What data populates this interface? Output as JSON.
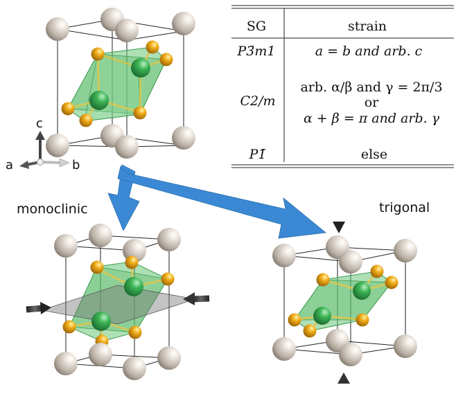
{
  "axes": {
    "a": "a",
    "b": "b",
    "c": "c"
  },
  "labels": {
    "monoclinic": "monoclinic",
    "trigonal": "trigonal"
  },
  "table": {
    "header": {
      "sg": "SG",
      "strain": "strain"
    },
    "rows": [
      {
        "sg": "P3̄m1",
        "strain": [
          "a = b and arb. c"
        ]
      },
      {
        "sg": "C2/m",
        "strain": [
          "arb. α/β and γ = 2π/3",
          "or",
          "α + β = π and arb. γ"
        ]
      },
      {
        "sg": "P1̄",
        "strain": [
          "else"
        ]
      }
    ]
  },
  "colors": {
    "atom_grey": "#d8d0c6",
    "atom_green": "#2f9a48",
    "atom_orange": "#e9a21a",
    "octahedron": "#6cc67a",
    "arrow_blue": "#3b89d4",
    "strain_arrow": "#333333",
    "plane": "#8a8a8a"
  },
  "icons": [
    "blue-transition-arrow",
    "compression-arrow",
    "axis-triad"
  ]
}
